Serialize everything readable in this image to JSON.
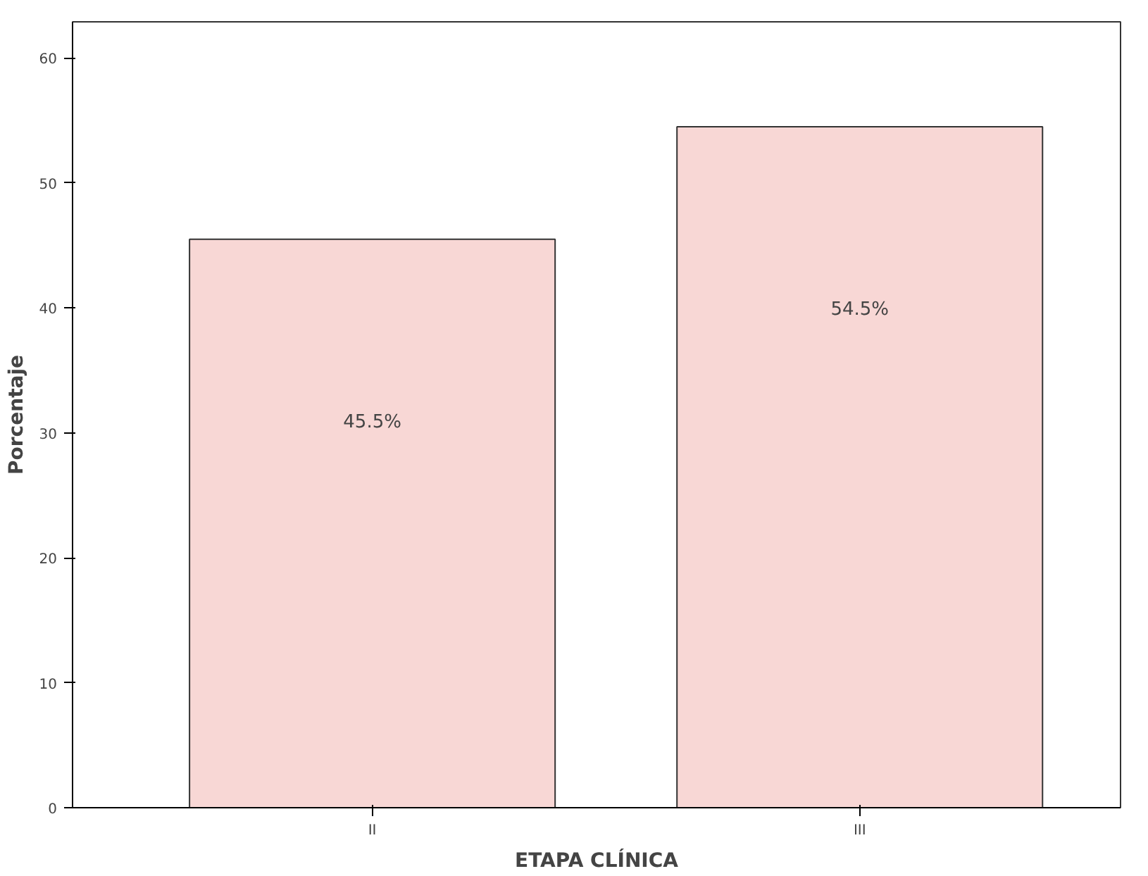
{
  "chart_data": {
    "type": "bar",
    "xlabel": "ETAPA CLÍNICA",
    "ylabel": "Porcentaje",
    "categories": [
      "II",
      "III"
    ],
    "values": [
      45.5,
      54.5
    ],
    "color": "#f8d7d5",
    "value_labels": [
      "45.5%",
      "54.5%"
    ],
    "ylim": [
      0,
      62.9
    ],
    "yticks": [
      0,
      10,
      20,
      30,
      40,
      50,
      60
    ],
    "grid": false
  }
}
